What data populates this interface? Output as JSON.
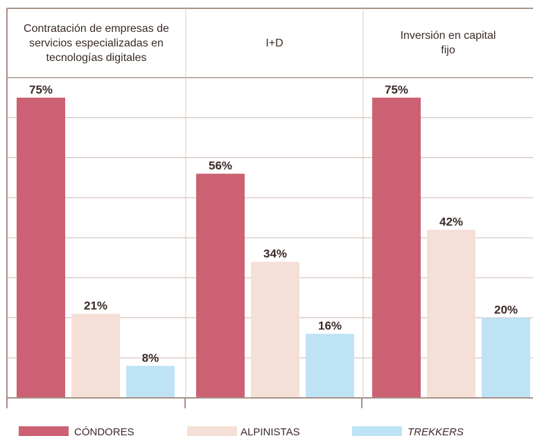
{
  "chart_data": {
    "type": "bar",
    "categories": [
      "Contratación de empresas de servicios especializadas en tecnologías digitales",
      "I+D",
      "Inversión en capital fijo"
    ],
    "series": [
      {
        "name": "CÓNDORES",
        "color": "#cc6173",
        "values": [
          75,
          56,
          75
        ],
        "value_labels": [
          "75%",
          "56%",
          "75%"
        ]
      },
      {
        "name": "ALPINISTAS",
        "color": "#f5e0d8",
        "values": [
          21,
          34,
          42
        ],
        "value_labels": [
          "21%",
          "34%",
          "42%"
        ]
      },
      {
        "name": "TREKKERS",
        "color": "#bde3f5",
        "values": [
          8,
          16,
          20
        ],
        "value_labels": [
          "8%",
          "16%",
          "20%"
        ]
      }
    ],
    "ylim": [
      0,
      80
    ],
    "yticks": [
      0,
      10,
      20,
      30,
      40,
      50,
      60,
      70,
      80
    ],
    "grid": true
  }
}
